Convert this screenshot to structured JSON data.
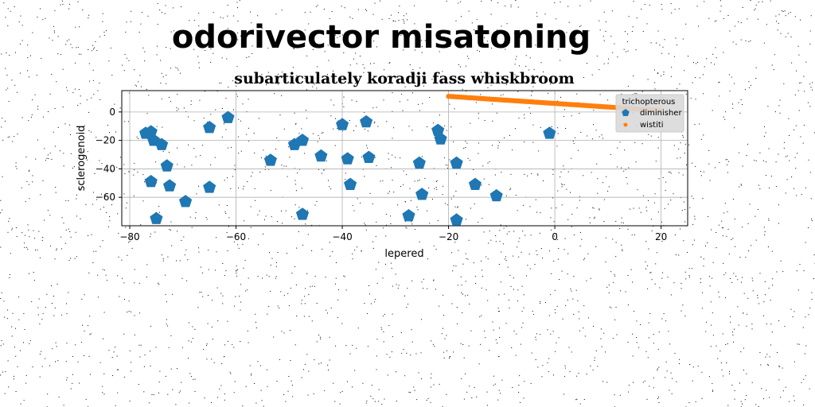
{
  "colors": {
    "series_1": "#1f77b4",
    "series_2": "#ff7f0e",
    "grid": "#b0b0b0",
    "noise": "#000000"
  },
  "chart_data": {
    "type": "scatter",
    "suptitle": "odorivector misatoning",
    "title": "subarticulately koradji fass whiskbroom",
    "xlabel": "lepered",
    "ylabel": "sclerogenoid",
    "xlim": [
      -81.5,
      25
    ],
    "ylim": [
      -80,
      15
    ],
    "xticks": [
      -80,
      -60,
      -40,
      -20,
      0,
      20
    ],
    "yticks": [
      0,
      -20,
      -40,
      -60
    ],
    "grid": true,
    "legend": {
      "title": "trichopterous",
      "placement": "top-right",
      "entries": [
        "diminisher",
        "wistiti"
      ]
    },
    "series": [
      {
        "name": "diminisher",
        "marker": "pentagon",
        "points": [
          [
            -77,
            -15
          ],
          [
            -76,
            -14
          ],
          [
            -75.5,
            -20
          ],
          [
            -74,
            -23
          ],
          [
            -73,
            -38
          ],
          [
            -76,
            -49
          ],
          [
            -72.5,
            -52
          ],
          [
            -75,
            -75
          ],
          [
            -69.5,
            -63
          ],
          [
            -65,
            -11
          ],
          [
            -65,
            -53
          ],
          [
            -61.5,
            -4
          ],
          [
            -53.5,
            -34
          ],
          [
            -49,
            -23
          ],
          [
            -47.5,
            -20
          ],
          [
            -47.5,
            -72
          ],
          [
            -44,
            -31
          ],
          [
            -40,
            -9
          ],
          [
            -39,
            -33
          ],
          [
            -38.5,
            -51
          ],
          [
            -35.5,
            -7
          ],
          [
            -35,
            -32
          ],
          [
            -27.5,
            -73
          ],
          [
            -25.5,
            -36
          ],
          [
            -25,
            -58
          ],
          [
            -22,
            -13
          ],
          [
            -21.5,
            -19
          ],
          [
            -18.5,
            -36
          ],
          [
            -18.5,
            -76
          ],
          [
            -15,
            -51
          ],
          [
            -11,
            -59
          ],
          [
            -1,
            -15
          ]
        ]
      },
      {
        "name": "wistiti",
        "marker": "circle",
        "x_start": -20,
        "x_end": 20,
        "count": 100,
        "y_start": 11,
        "y_end": 1
      }
    ]
  }
}
